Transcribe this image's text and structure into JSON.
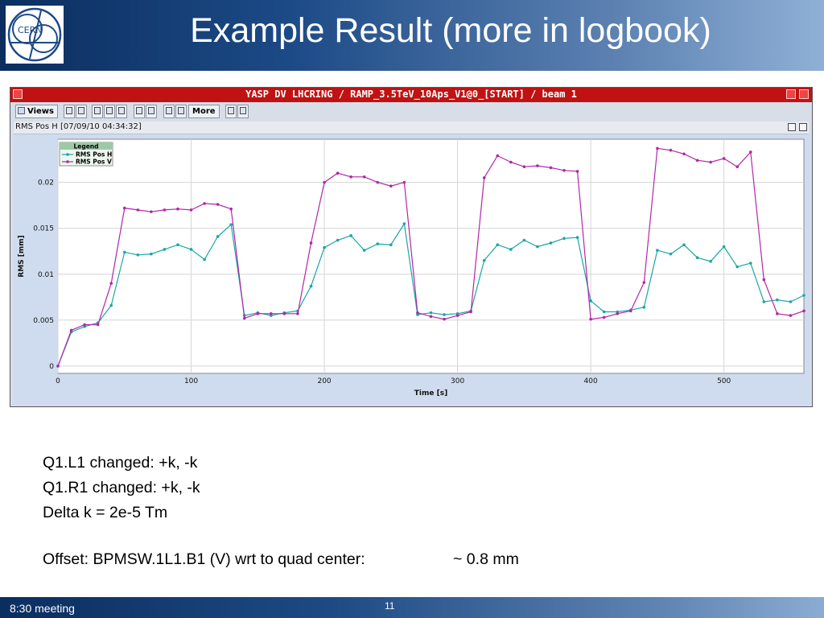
{
  "slide": {
    "title": "Example Result (more in logbook)",
    "logo_text": "CERN",
    "footer_left": "8:30 meeting",
    "page_number": "11"
  },
  "app": {
    "window_title": "YASP DV LHCRING / RAMP_3.5TeV_10Aps_V1@0_[START] / beam 1",
    "toolbar": {
      "views_label": "Views",
      "more_label": "More"
    },
    "panel_title": "RMS Pos H  [07/09/10 04:34:32]"
  },
  "chart_data": {
    "type": "line",
    "title": "",
    "xlabel": "Time [s]",
    "ylabel": "RMS [mm]",
    "xlim": [
      0,
      560
    ],
    "ylim": [
      -0.0008,
      0.0247
    ],
    "x_ticks": [
      0,
      100,
      200,
      300,
      400,
      500
    ],
    "x_tick_labels": [
      "0",
      "100",
      "200",
      "300",
      "400",
      "500"
    ],
    "y_ticks": [
      0,
      0.005,
      0.01,
      0.015,
      0.02
    ],
    "y_tick_labels": [
      "0",
      "0.005",
      "0.01",
      "0.015",
      "0.02"
    ],
    "grid": true,
    "legend": {
      "title": "Legend",
      "position": "top-left"
    },
    "x": [
      0,
      10,
      20,
      30,
      40,
      50,
      60,
      70,
      80,
      90,
      100,
      110,
      120,
      130,
      140,
      150,
      160,
      170,
      180,
      190,
      200,
      210,
      220,
      230,
      240,
      250,
      260,
      270,
      280,
      290,
      300,
      310,
      320,
      330,
      340,
      350,
      360,
      370,
      380,
      390,
      400,
      410,
      420,
      430,
      440,
      450,
      460,
      470,
      480,
      490,
      500,
      510,
      520,
      530,
      540,
      550,
      560
    ],
    "series": [
      {
        "name": "RMS Pos H",
        "color": "#1aa6a6",
        "values": [
          0,
          0.0037,
          0.0043,
          0.0047,
          0.0066,
          0.0124,
          0.0121,
          0.0122,
          0.0127,
          0.0132,
          0.0127,
          0.0116,
          0.0141,
          0.0154,
          0.0055,
          0.0058,
          0.0055,
          0.0058,
          0.006,
          0.0087,
          0.0129,
          0.0137,
          0.0142,
          0.0126,
          0.0133,
          0.0132,
          0.0155,
          0.0056,
          0.0058,
          0.0056,
          0.0057,
          0.006,
          0.0115,
          0.0132,
          0.0127,
          0.0137,
          0.013,
          0.0134,
          0.0139,
          0.014,
          0.0071,
          0.0059,
          0.0059,
          0.0061,
          0.0064,
          0.0126,
          0.0122,
          0.0132,
          0.0118,
          0.0114,
          0.013,
          0.0108,
          0.0112,
          0.007,
          0.0072,
          0.007,
          0.0077
        ]
      },
      {
        "name": "RMS Pos V",
        "color": "#b227a8",
        "values": [
          0,
          0.0039,
          0.0045,
          0.0045,
          0.009,
          0.0172,
          0.017,
          0.0168,
          0.017,
          0.0171,
          0.017,
          0.0177,
          0.0176,
          0.0171,
          0.0052,
          0.0057,
          0.0057,
          0.0057,
          0.0057,
          0.0134,
          0.02,
          0.021,
          0.0206,
          0.0206,
          0.02,
          0.0196,
          0.02,
          0.0058,
          0.0054,
          0.0051,
          0.0055,
          0.0059,
          0.0205,
          0.0229,
          0.0222,
          0.0217,
          0.0218,
          0.0216,
          0.0213,
          0.0212,
          0.0051,
          0.0053,
          0.0057,
          0.006,
          0.0091,
          0.0237,
          0.0235,
          0.0231,
          0.0224,
          0.0222,
          0.0226,
          0.0217,
          0.0233,
          0.0094,
          0.0057,
          0.0055,
          0.006
        ]
      }
    ]
  },
  "notes": {
    "lines": [
      "Q1.L1 changed: +k, -k",
      "Q1.R1 changed: +k, -k",
      "Delta k = 2e-5 Tm"
    ],
    "offset_label": "Offset: BPMSW.1L1.B1 (V) wrt to quad center:",
    "offset_value": "~ 0.8 mm"
  }
}
